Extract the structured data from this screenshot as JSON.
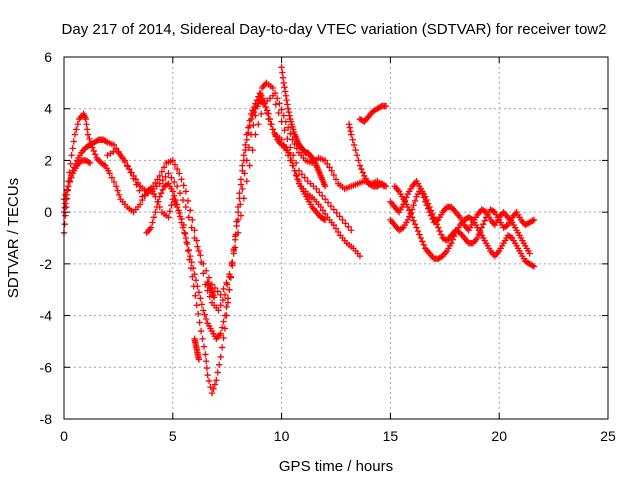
{
  "chart_data": {
    "type": "scatter",
    "title": "Day 217 of 2014, Sidereal Day-to-day VTEC variation (SDTVAR) for receiver tow2",
    "xlabel": "GPS time / hours",
    "ylabel": "SDTVAR / TECUs",
    "xlim": [
      0,
      25
    ],
    "ylim": [
      -8,
      6
    ],
    "xticks": [
      "0",
      "5",
      "10",
      "15",
      "20",
      "25"
    ],
    "yticks": [
      "6",
      "4",
      "2",
      "0",
      "-2",
      "-4",
      "-6",
      "-8"
    ],
    "grid": true,
    "marker": "+",
    "color": "#ff0000",
    "series": [
      {
        "x": [
          0.0,
          0.1,
          0.2,
          0.35,
          0.5,
          0.7,
          0.9,
          1.0,
          1.1,
          1.3,
          1.5,
          1.7,
          1.9,
          2.1,
          2.4,
          2.6,
          2.9,
          3.2,
          3.5,
          3.8,
          4.0,
          4.2,
          4.5,
          4.8,
          5.0,
          5.2,
          5.5,
          5.7,
          5.9,
          6.1,
          6.3,
          6.5,
          6.6,
          6.8,
          7.0,
          7.2,
          7.4,
          7.6,
          7.8,
          8.0,
          8.2,
          8.4,
          8.6,
          8.8,
          9.0,
          9.2,
          9.4,
          9.7,
          10.0,
          10.3,
          10.6,
          10.9,
          11.2,
          11.5,
          11.8,
          12.1,
          12.4,
          12.7,
          13.0,
          13.3,
          13.6
        ],
        "y": [
          -0.8,
          0.2,
          1.2,
          2.2,
          3.0,
          3.6,
          3.8,
          3.6,
          3.0,
          2.5,
          2.1,
          1.9,
          1.8,
          1.5,
          1.0,
          0.5,
          0.2,
          0.0,
          0.3,
          0.8,
          0.9,
          0.6,
          0.0,
          -0.2,
          0.5,
          0.2,
          -0.5,
          -1.5,
          -2.5,
          -3.6,
          -4.6,
          -5.5,
          -6.3,
          -7.0,
          -6.5,
          -5.6,
          -4.5,
          -3.0,
          -1.5,
          0.2,
          1.8,
          3.0,
          3.8,
          4.2,
          4.6,
          4.3,
          3.6,
          3.0,
          2.8,
          2.2,
          1.6,
          1.0,
          0.7,
          0.5,
          0.2,
          -0.2,
          -0.5,
          -0.9,
          -1.2,
          -1.4,
          -1.7
        ]
      },
      {
        "x": [
          0.0,
          0.2,
          0.4,
          0.6,
          0.8,
          1.0,
          1.2,
          1.4,
          1.6,
          1.8,
          2.0,
          2.3,
          2.6,
          2.9,
          3.2,
          3.5,
          3.8,
          4.1,
          4.4,
          4.7,
          5.0,
          5.3,
          5.6,
          5.9,
          6.2,
          6.5,
          6.8,
          7.1,
          7.4,
          7.7,
          8.0,
          8.3,
          8.6,
          8.9,
          9.1,
          9.3,
          9.6,
          9.9,
          10.2,
          10.5,
          10.8,
          11.1,
          11.4,
          11.7,
          12.0,
          12.3,
          12.6,
          12.9,
          13.2,
          13.5,
          13.8,
          14.1,
          14.4,
          14.7
        ],
        "y": [
          0.5,
          1.0,
          1.6,
          2.0,
          2.3,
          2.5,
          2.6,
          2.7,
          2.8,
          2.8,
          2.7,
          2.6,
          2.2,
          1.8,
          1.4,
          1.0,
          0.8,
          1.0,
          1.4,
          1.9,
          2.0,
          1.5,
          0.8,
          -0.3,
          -1.5,
          -2.8,
          -3.5,
          -3.8,
          -3.2,
          -2.0,
          -0.3,
          1.5,
          3.0,
          4.1,
          4.8,
          5.0,
          4.8,
          4.2,
          3.5,
          2.8,
          2.3,
          2.0,
          1.9,
          2.1,
          2.0,
          1.6,
          1.1,
          0.9,
          1.0,
          1.1,
          1.2,
          1.1,
          1.2,
          1.0
        ]
      },
      {
        "x": [
          3.8,
          4.0,
          4.2,
          4.4,
          4.6,
          4.8,
          5.0,
          5.2,
          5.4,
          5.6,
          5.8,
          6.0,
          6.2,
          6.4,
          6.6,
          6.8,
          7.0,
          7.2,
          7.4,
          7.6,
          7.8,
          8.0,
          8.2,
          8.4,
          8.6,
          8.8,
          9.0,
          9.2,
          9.4,
          9.6,
          9.8,
          10.0,
          10.2,
          10.4,
          10.6,
          10.8,
          11.0,
          11.2,
          11.4,
          11.6,
          11.8,
          12.0
        ],
        "y": [
          -0.8,
          -0.6,
          0.0,
          0.6,
          1.0,
          1.1,
          0.8,
          0.3,
          -0.4,
          -1.0,
          -1.7,
          -2.4,
          -3.1,
          -3.8,
          -4.3,
          -4.6,
          -4.9,
          -4.7,
          -4.0,
          -3.0,
          -1.6,
          0.0,
          1.6,
          2.8,
          3.6,
          4.0,
          4.3,
          4.2,
          3.8,
          3.2,
          2.8,
          2.6,
          2.5,
          2.2,
          1.6,
          1.1,
          0.8,
          0.5,
          0.2,
          0.0,
          -0.2,
          -0.3
        ]
      },
      {
        "x": [
          6.0,
          6.05,
          6.1,
          6.15,
          6.2,
          6.6,
          6.7,
          6.8,
          6.9,
          10.0,
          10.1,
          10.2,
          10.3,
          10.4,
          10.5,
          10.6,
          10.7,
          10.8,
          10.9,
          11.0,
          11.1,
          11.2,
          11.3,
          11.4,
          11.5,
          11.6,
          11.7,
          11.8,
          11.9,
          12.0,
          13.1,
          13.2,
          13.4,
          13.6,
          13.8,
          14.0,
          14.2,
          14.4,
          14.6,
          14.8
        ],
        "y": [
          -4.9,
          -5.1,
          -5.3,
          -5.5,
          -5.7,
          -2.7,
          -2.9,
          -3.1,
          -3.3,
          5.6,
          5.0,
          4.5,
          4.0,
          3.6,
          3.3,
          3.0,
          2.8,
          2.6,
          2.5,
          2.4,
          2.3,
          2.3,
          2.2,
          2.1,
          2.0,
          1.8,
          1.6,
          1.4,
          1.2,
          1.0,
          3.4,
          3.0,
          2.4,
          1.8,
          1.4,
          1.1,
          1.0,
          1.0,
          1.1,
          1.0
        ]
      },
      {
        "x": [
          13.6,
          13.8,
          14.0,
          14.2,
          14.4,
          14.6,
          14.8,
          15.2,
          15.4,
          15.6,
          15.8,
          16.0,
          16.2,
          16.4,
          16.6,
          16.8,
          17.0,
          17.2,
          17.4,
          17.6,
          17.8,
          18.0,
          18.2,
          18.4,
          18.6,
          18.8,
          19.0,
          19.2,
          19.4,
          19.6,
          19.8,
          20.0,
          20.2,
          20.4,
          20.6,
          20.8,
          21.0,
          21.2,
          21.4,
          21.6
        ],
        "y": [
          3.6,
          3.5,
          3.7,
          3.9,
          4.0,
          4.1,
          4.1,
          1.0,
          0.8,
          0.5,
          0.2,
          -0.2,
          -0.6,
          -1.0,
          -1.4,
          -1.6,
          -1.8,
          -1.8,
          -1.7,
          -1.5,
          -1.2,
          -0.8,
          -0.5,
          -0.3,
          -0.2,
          -0.3,
          -0.6,
          -0.9,
          -1.2,
          -1.5,
          -1.7,
          -1.5,
          -1.2,
          -0.9,
          -1.0,
          -1.3,
          -1.6,
          -1.9,
          -2.0,
          -2.1
        ]
      },
      {
        "x": [
          15.0,
          15.2,
          15.4,
          15.6,
          15.8,
          16.0,
          16.2,
          16.4,
          16.6,
          16.8,
          17.0,
          17.2,
          17.4,
          17.6,
          17.8,
          18.0,
          18.2,
          18.4,
          18.6,
          18.8,
          19.0,
          19.2,
          19.4,
          19.6,
          19.8,
          20.0,
          20.2,
          20.4,
          20.6,
          20.8,
          21.0,
          21.2,
          21.4
        ],
        "y": [
          0.4,
          0.2,
          0.0,
          0.3,
          0.7,
          1.0,
          1.2,
          0.9,
          0.4,
          0.0,
          -0.4,
          -0.3,
          0.0,
          0.2,
          0.2,
          0.0,
          -0.2,
          -0.5,
          -0.7,
          -0.4,
          -0.1,
          0.1,
          0.0,
          -0.3,
          -0.5,
          -0.2,
          0.0,
          -0.2,
          -0.4,
          -0.7,
          -1.0,
          -1.3,
          -1.6
        ]
      },
      {
        "x": [
          15.0,
          15.2,
          15.4,
          15.6,
          15.8,
          16.0,
          16.2,
          16.4,
          16.6,
          16.8,
          17.0,
          17.2,
          17.4,
          17.6,
          17.8,
          18.0,
          18.2,
          18.4,
          18.6,
          18.8,
          19.0,
          19.2,
          19.4,
          19.6,
          19.8,
          20.0,
          20.2,
          20.4,
          20.6,
          20.8,
          21.0,
          21.2,
          21.4,
          21.6
        ],
        "y": [
          -0.3,
          -0.5,
          -0.7,
          -0.6,
          -0.3,
          0.1,
          0.6,
          0.9,
          0.6,
          0.2,
          -0.2,
          -0.6,
          -1.0,
          -1.1,
          -0.9,
          -0.7,
          -0.8,
          -1.0,
          -1.2,
          -1.2,
          -1.0,
          -0.6,
          -0.2,
          0.1,
          0.0,
          -0.3,
          -0.6,
          -0.5,
          -0.2,
          0.0,
          -0.3,
          -0.5,
          -0.4,
          -0.3
        ]
      },
      {
        "x": [
          0.0,
          0.1,
          0.2,
          0.4,
          0.6,
          0.8,
          1.0,
          1.2,
          2.0,
          2.4,
          2.8,
          3.2,
          3.6,
          4.0,
          4.4,
          4.8,
          5.2,
          5.6,
          6.0,
          6.4,
          6.8,
          7.2,
          7.6,
          8.0,
          8.4,
          8.8,
          9.2,
          9.6,
          10.0,
          10.4,
          10.8,
          11.2,
          11.6,
          12.0,
          12.4,
          12.8,
          13.2
        ],
        "y": [
          0.0,
          0.5,
          1.0,
          1.5,
          1.8,
          2.0,
          2.0,
          1.9,
          2.2,
          2.4,
          2.0,
          1.3,
          0.6,
          0.8,
          1.1,
          1.5,
          1.0,
          0.2,
          -1.0,
          -2.0,
          -2.8,
          -3.2,
          -2.5,
          -0.8,
          1.2,
          3.0,
          4.2,
          4.5,
          3.5,
          2.5,
          1.6,
          1.2,
          0.9,
          0.5,
          0.1,
          -0.3,
          -0.7
        ]
      }
    ]
  }
}
